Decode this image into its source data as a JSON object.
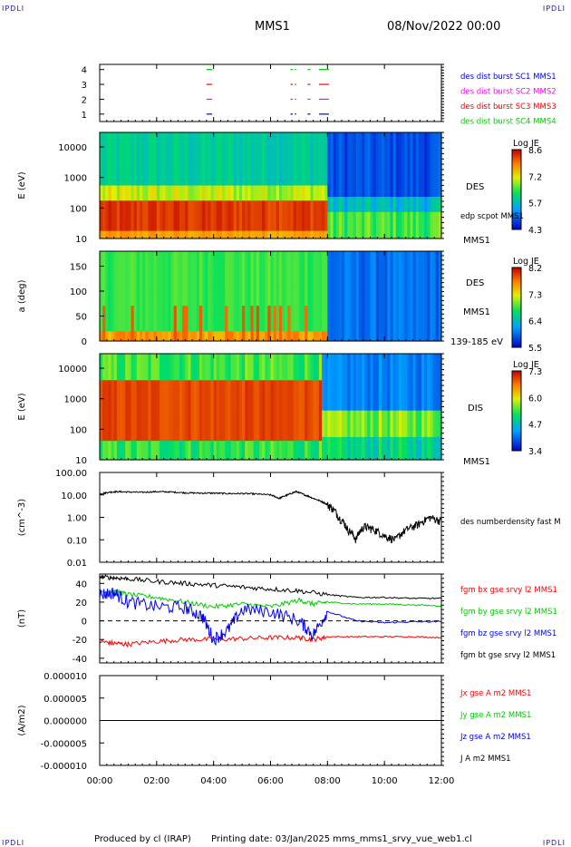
{
  "header": {
    "corner_left_top": "IPDLI",
    "corner_right_top": "IPDLI",
    "corner_left_bottom": "IPDLI",
    "corner_right_bottom": "IPDLI",
    "title": "MMS1",
    "datetime": "08/Nov/2022 00:00"
  },
  "footer": {
    "produced": "Produced by cl (IRAP)",
    "printing": "Printing date: 03/Jan/2025",
    "file": "mms_mms1_srvy_vue_web1.cl"
  },
  "x_axis": {
    "ticks": [
      "00:00",
      "02:00",
      "04:00",
      "06:00",
      "08:00",
      "10:00",
      "12:00"
    ],
    "hours": [
      0,
      2,
      4,
      6,
      8,
      10,
      12
    ]
  },
  "panel_labels": {
    "p1": {
      "y_ticks": [
        "4",
        "3",
        "2",
        "1"
      ],
      "legend": [
        {
          "text": "des dist burst SC1 MMS1",
          "color": "#0000ff"
        },
        {
          "text": "des dist burst SC2 MMS2",
          "color": "#ff00ff"
        },
        {
          "text": "des dist burst SC3 MMS3",
          "color": "#ff0000"
        },
        {
          "text": "des dist burst SC4 MMS4",
          "color": "#00cc00"
        }
      ]
    },
    "p2": {
      "ylabel": "E (eV)",
      "y_ticks": [
        "10000",
        "1000",
        "100",
        "10"
      ],
      "right_name": "DES",
      "right_sub": "edp scpot MMS1",
      "right_bottom": "MMS1",
      "cbar_title": "Log JE",
      "cbar_ticks": [
        "8.6",
        "7.2",
        "5.7",
        "4.3"
      ]
    },
    "p3": {
      "ylabel": "a (deg)",
      "y_ticks": [
        "150",
        "100",
        "50",
        "0"
      ],
      "right_name": "DES",
      "right_sub": "MMS1",
      "right_bottom": "139-185 eV",
      "cbar_title": "Log JE",
      "cbar_ticks": [
        "8.2",
        "7.3",
        "6.4",
        "5.5"
      ]
    },
    "p4": {
      "ylabel": "E (eV)",
      "y_ticks": [
        "10000",
        "1000",
        "100",
        "10"
      ],
      "right_name": "DIS",
      "right_bottom": "MMS1",
      "cbar_title": "Log JE",
      "cbar_ticks": [
        "7.3",
        "6.0",
        "4.7",
        "3.4"
      ]
    },
    "p5": {
      "ylabel": "(cm^-3)",
      "y_ticks": [
        "100.00",
        "10.00",
        "1.00",
        "0.10",
        "0.01"
      ],
      "legend": [
        {
          "text": "des numberdensity fast M",
          "color": "#000000"
        }
      ]
    },
    "p6": {
      "ylabel": "(nT)",
      "y_ticks": [
        "40",
        "20",
        "0",
        "-20",
        "-40"
      ],
      "legend": [
        {
          "text": "fgm bx gse srvy l2 MMS1",
          "color": "#ff0000"
        },
        {
          "text": "fgm by gse srvy l2 MMS1",
          "color": "#00cc00"
        },
        {
          "text": "fgm bz gse srvy l2 MMS1",
          "color": "#0000ff"
        },
        {
          "text": "fgm bt gse srvy l2 MMS1",
          "color": "#000000"
        }
      ]
    },
    "p7": {
      "ylabel": "(A/m2)",
      "y_ticks": [
        "0.000010",
        "0.000005",
        "0.000000",
        "-0.000005",
        "-0.000010"
      ],
      "legend": [
        {
          "text": "Jx gse A m2 MMS1",
          "color": "#ff0000"
        },
        {
          "text": "Jy gse A m2 MMS1",
          "color": "#00cc00"
        },
        {
          "text": "Jz gse A m2 MMS1",
          "color": "#0000ff"
        },
        {
          "text": "J A m2 MMS1",
          "color": "#000000"
        }
      ]
    }
  },
  "chart_data": [
    {
      "type": "timeline",
      "title": "burst intervals",
      "x_unit": "hours",
      "xlim": [
        0,
        12
      ],
      "rows": [
        {
          "sc": 4,
          "color": "#00cc00",
          "intervals": [
            [
              3.75,
              3.95
            ],
            [
              6.7,
              6.78
            ],
            [
              6.85,
              6.9
            ],
            [
              7.3,
              7.4
            ],
            [
              7.7,
              8.05
            ]
          ]
        },
        {
          "sc": 3,
          "color": "#ff0000",
          "intervals": [
            [
              3.75,
              3.95
            ],
            [
              6.7,
              6.78
            ],
            [
              6.85,
              6.9
            ],
            [
              7.3,
              7.4
            ],
            [
              7.7,
              8.05
            ]
          ]
        },
        {
          "sc": 2,
          "color": "#ff00ff",
          "intervals": [
            [
              3.75,
              3.95
            ],
            [
              6.7,
              6.78
            ],
            [
              6.85,
              6.9
            ],
            [
              7.3,
              7.4
            ],
            [
              7.7,
              8.05
            ]
          ]
        },
        {
          "sc": 1,
          "color": "#0000ff",
          "intervals": [
            [
              3.75,
              3.95
            ],
            [
              6.7,
              6.78
            ],
            [
              6.85,
              6.9
            ],
            [
              7.3,
              7.4
            ],
            [
              7.7,
              8.05
            ]
          ]
        }
      ]
    },
    {
      "type": "heatmap",
      "name": "DES energy spectrogram",
      "y_scale": "log",
      "ylim": [
        10,
        30000
      ],
      "colorbar": {
        "label": "Log JE",
        "range": [
          4.3,
          8.6
        ]
      },
      "before_8h": "peak flux 30-150 eV, green-blue above 1000 eV",
      "after_8h": "low flux (blue) above 1000 eV, green-yellow below 100 eV"
    },
    {
      "type": "heatmap",
      "name": "DES pitch angle",
      "ylim": [
        0,
        180
      ],
      "colorbar": {
        "label": "Log JE",
        "range": [
          5.5,
          8.2
        ]
      },
      "before_8h": "green with orange/red spikes near 0-60 deg",
      "after_8h": "blue"
    },
    {
      "type": "heatmap",
      "name": "DIS energy spectrogram",
      "y_scale": "log",
      "ylim": [
        10,
        30000
      ],
      "colorbar": {
        "label": "Log JE",
        "range": [
          3.4,
          7.3
        ]
      },
      "before_8h": "red band 100-2000 eV",
      "after_8h": "green/blue, band drops to ~100-500 eV"
    },
    {
      "type": "line",
      "y_scale": "log",
      "ylim": [
        0.01,
        100
      ],
      "x_unit": "hours",
      "series": [
        {
          "name": "des numberdensity fast M",
          "color": "#000000",
          "x": [
            0,
            0.3,
            0.6,
            1,
            1.5,
            2,
            2.5,
            3,
            3.5,
            4,
            4.5,
            5,
            5.5,
            6,
            6.3,
            6.6,
            6.9,
            7.2,
            7.5,
            7.8,
            8.1,
            8.4,
            8.7,
            9,
            9.3,
            9.6,
            10,
            10.4,
            10.8,
            11.2,
            11.6,
            12
          ],
          "y": [
            11,
            13,
            14,
            13.5,
            13,
            14,
            13.5,
            12.5,
            12,
            12,
            11.5,
            11.5,
            11,
            10,
            7,
            10,
            14,
            10,
            7,
            5,
            3,
            1,
            0.3,
            0.1,
            0.4,
            0.3,
            0.15,
            0.1,
            0.3,
            0.5,
            1,
            0.7
          ]
        }
      ]
    },
    {
      "type": "line",
      "ylim": [
        -45,
        50
      ],
      "x_unit": "hours",
      "series": [
        {
          "name": "fgm bx gse srvy l2 MMS1",
          "color": "#ff0000",
          "x": [
            0,
            0.5,
            1,
            2,
            3,
            4,
            5,
            6,
            7,
            7.5,
            8,
            9,
            10,
            11,
            12
          ],
          "y": [
            -22,
            -24,
            -25,
            -22,
            -20,
            -20,
            -19,
            -18,
            -18,
            -20,
            -17,
            -17,
            -17,
            -17,
            -18
          ]
        },
        {
          "name": "fgm by gse srvy l2 MMS1",
          "color": "#00cc00",
          "x": [
            0,
            0.5,
            1,
            2,
            3,
            4,
            5,
            6,
            7,
            7.5,
            8,
            9,
            10,
            11,
            12
          ],
          "y": [
            30,
            32,
            28,
            25,
            20,
            15,
            18,
            15,
            22,
            18,
            20,
            18,
            18,
            17,
            16
          ]
        },
        {
          "name": "fgm bz gse srvy l2 MMS1",
          "color": "#0000ff",
          "x": [
            0,
            0.5,
            1,
            2,
            3,
            3.6,
            4,
            4.5,
            5,
            6,
            7,
            7.5,
            8,
            9,
            10,
            11,
            12
          ],
          "y": [
            28,
            30,
            20,
            15,
            14,
            5,
            -20,
            -10,
            12,
            10,
            0,
            -15,
            10,
            0,
            -2,
            -1,
            -1
          ]
        },
        {
          "name": "fgm bt gse srvy l2 MMS1",
          "color": "#000000",
          "x": [
            0,
            0.5,
            1,
            2,
            3,
            4,
            5,
            6,
            7,
            8,
            9,
            10,
            11,
            12
          ],
          "y": [
            47,
            46,
            45,
            42,
            40,
            38,
            36,
            34,
            32,
            28,
            25,
            25,
            24,
            24
          ]
        }
      ]
    },
    {
      "type": "line",
      "ylim": [
        -1e-05,
        1e-05
      ],
      "x_unit": "hours",
      "series": [
        {
          "name": "Jx gse A m2 MMS1",
          "color": "#ff0000",
          "x": [
            0,
            12
          ],
          "y": [
            0,
            0
          ]
        },
        {
          "name": "Jy gse A m2 MMS1",
          "color": "#00cc00",
          "x": [
            0,
            12
          ],
          "y": [
            0,
            0
          ]
        },
        {
          "name": "Jz gse A m2 MMS1",
          "color": "#0000ff",
          "x": [
            0,
            12
          ],
          "y": [
            0,
            0
          ]
        },
        {
          "name": "J A m2 MMS1",
          "color": "#000000",
          "x": [
            0,
            12
          ],
          "y": [
            0,
            0
          ]
        }
      ]
    }
  ]
}
